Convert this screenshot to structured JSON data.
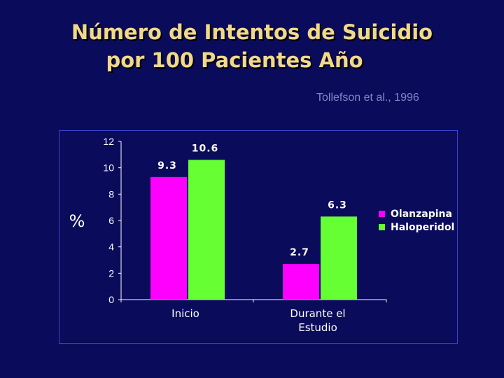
{
  "slide": {
    "title_line1": "Número de Intentos de Suicidio",
    "title_line2": "por 100 Pacientes Año",
    "citation": "Tollefson et al., 1996"
  },
  "chart_data": {
    "type": "bar",
    "categories": [
      "Inicio",
      "Durante el\nEstudio"
    ],
    "series": [
      {
        "name": "Olanzapina",
        "values": [
          9.3,
          2.7
        ],
        "color": "#ff00ff"
      },
      {
        "name": "Haloperidol",
        "values": [
          10.6,
          6.3
        ],
        "color": "#66ff33"
      }
    ],
    "ylabel": "%",
    "ylim": [
      0,
      12
    ],
    "yticks": [
      0,
      2,
      4,
      6,
      8,
      10,
      12
    ],
    "grid": false,
    "legend": "right"
  }
}
